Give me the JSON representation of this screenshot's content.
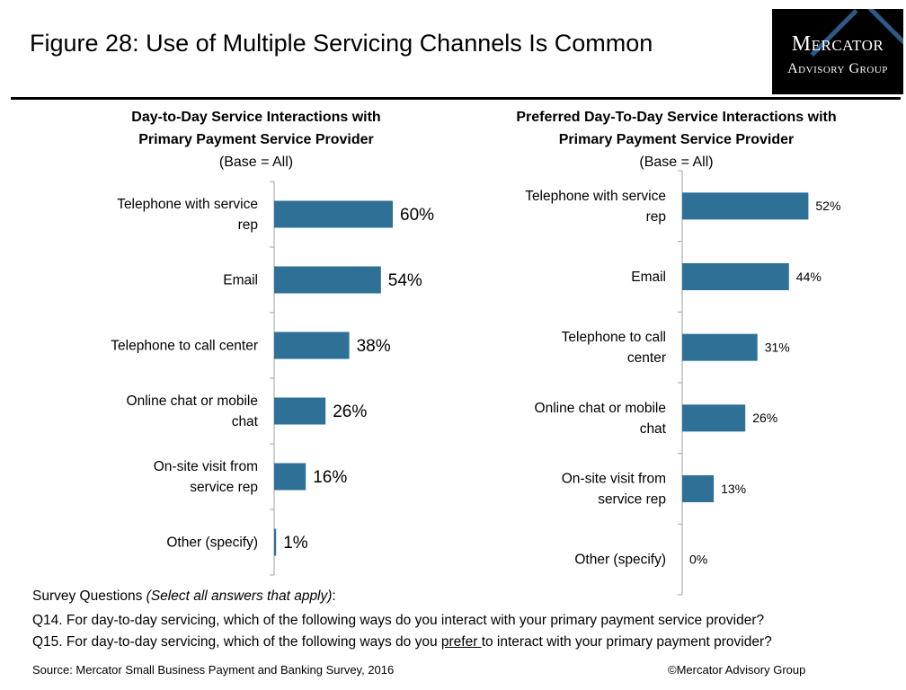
{
  "title": "Figure 28: Use of Multiple Servicing Channels Is Common",
  "logo": {
    "line1": "Mercator",
    "line2": "Advisory Group"
  },
  "charts_head": [
    {
      "title_line1": "Day-to-Day Service Interactions with",
      "title_line2": "Primary Payment Service Provider",
      "base": "(Base = All)"
    },
    {
      "title_line1": "Preferred Day-To-Day Service Interactions with",
      "title_line2": "Primary Payment Service Provider",
      "base": "(Base = All)"
    }
  ],
  "colors": {
    "bar": "#2e7096",
    "axis": "#a0a0a0"
  },
  "chart_data": [
    {
      "type": "bar",
      "orientation": "horizontal",
      "title": "Day-to-Day Service Interactions with Primary Payment Service Provider",
      "subtitle": "(Base = All)",
      "categories": [
        [
          "Telephone with service",
          "rep"
        ],
        [
          "Email"
        ],
        [
          "Telephone to call center"
        ],
        [
          "Online chat or mobile",
          "chat"
        ],
        [
          "On-site visit from",
          "service rep"
        ],
        [
          "Other (specify)"
        ]
      ],
      "values": [
        60,
        54,
        38,
        26,
        16,
        1
      ],
      "labels": [
        "60%",
        "54%",
        "38%",
        "26%",
        "16%",
        "1%"
      ],
      "unit": "%",
      "grid": false
    },
    {
      "type": "bar",
      "orientation": "horizontal",
      "title": "Preferred Day-To-Day Service Interactions with Primary Payment Service Provider",
      "subtitle": "(Base = All)",
      "categories": [
        [
          "Telephone with service",
          "rep"
        ],
        [
          "Email"
        ],
        [
          "Telephone to call",
          "center"
        ],
        [
          "Online chat or mobile",
          "chat"
        ],
        [
          "On-site visit from",
          "service rep"
        ],
        [
          "Other (specify)"
        ]
      ],
      "values": [
        52,
        44,
        31,
        26,
        13,
        0
      ],
      "labels": [
        "52%",
        "44%",
        "31%",
        "26%",
        "13%",
        "0%"
      ],
      "unit": "%",
      "grid": false
    }
  ],
  "notes": {
    "survey_prefix": "Survey Questions ",
    "survey_italic": "(Select all answers that apply)",
    "survey_suffix": ":",
    "q14": "Q14. For day-to-day servicing, which of the following ways do you interact with your primary payment service provider?",
    "q15_before": "Q15. For day-to-day servicing, which of the following ways do you ",
    "q15_underlined": "prefer ",
    "q15_after": "to interact with your primary payment provider?"
  },
  "source": "Source: Mercator Small Business Payment and Banking Survey, 2016",
  "copyright": "©Mercator Advisory Group"
}
